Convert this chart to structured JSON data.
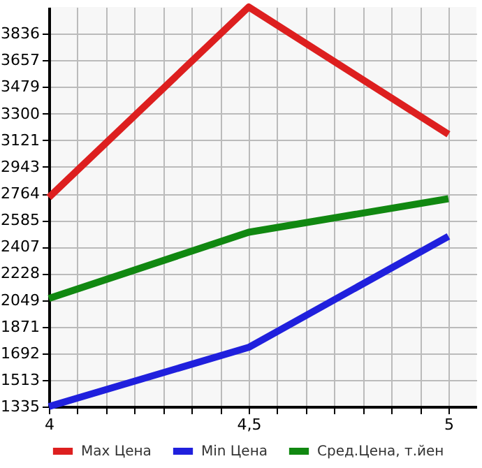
{
  "chart_data": {
    "type": "line",
    "x": [
      4,
      4.5,
      5
    ],
    "series": [
      {
        "name": "Max Цена",
        "color": "#dd1f1f",
        "values": [
          2738,
          4015,
          3161
        ]
      },
      {
        "name": "Min Цена",
        "color": "#2020dd",
        "values": [
          1335,
          1732,
          2477
        ]
      },
      {
        "name": "Сред.Цена, т.йен",
        "color": "#118811",
        "values": [
          2060,
          2504,
          2729
        ]
      }
    ],
    "xlim": [
      4,
      5.07
    ],
    "xticks": [
      4,
      {
        "value": 4.071,
        "label": null
      },
      {
        "value": 4.143,
        "label": null
      },
      {
        "value": 4.214,
        "label": null
      },
      {
        "value": 4.286,
        "label": null
      },
      {
        "value": 4.357,
        "label": null
      },
      {
        "value": 4.429,
        "label": null
      },
      {
        "value": 4.5,
        "label": "4,5"
      },
      {
        "value": 4.571,
        "label": null
      },
      {
        "value": 4.643,
        "label": null
      },
      {
        "value": 4.714,
        "label": null
      },
      {
        "value": 4.786,
        "label": null
      },
      {
        "value": 4.857,
        "label": null
      },
      {
        "value": 4.929,
        "label": null
      },
      5
    ],
    "ylim": [
      1335,
      4015
    ],
    "yticks": [
      1335,
      1513,
      1692,
      1871,
      2049,
      2228,
      2407,
      2585,
      2764,
      2943,
      3121,
      3300,
      3479,
      3657,
      3836
    ],
    "grid": true,
    "legend": "bottom",
    "marker": "none",
    "line_style": "solid"
  }
}
